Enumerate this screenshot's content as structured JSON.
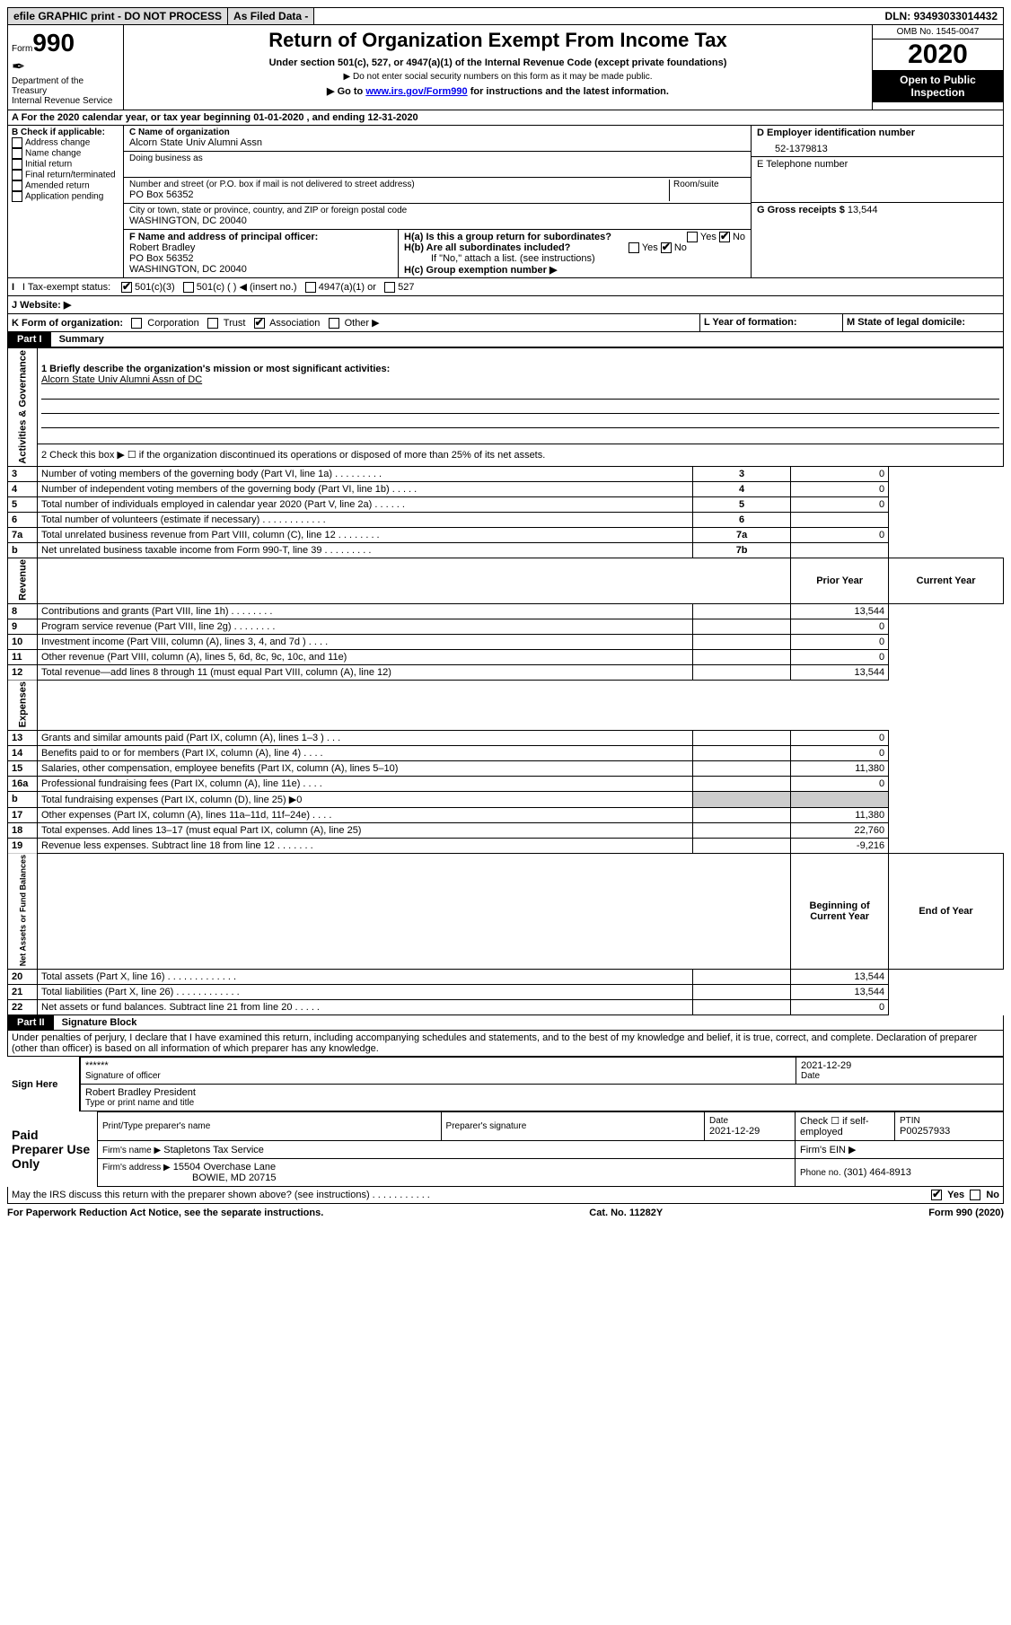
{
  "topbar": {
    "efile": "efile GRAPHIC print - DO NOT PROCESS",
    "asfiled": "As Filed Data -",
    "dln_label": "DLN:",
    "dln": "93493033014432"
  },
  "header": {
    "form": "990",
    "form_prefix": "Form",
    "dept": "Department of the Treasury\nInternal Revenue Service",
    "title": "Return of Organization Exempt From Income Tax",
    "sub1": "Under section 501(c), 527, or 4947(a)(1) of the Internal Revenue Code (except private foundations)",
    "sub2": "▶ Do not enter social security numbers on this form as it may be made public.",
    "sub3_pre": "▶ Go to ",
    "sub3_link": "www.irs.gov/Form990",
    "sub3_post": " for instructions and the latest information.",
    "omb": "OMB No. 1545-0047",
    "year": "2020",
    "inspect": "Open to Public Inspection"
  },
  "line_a": "A  For the 2020 calendar year, or tax year beginning 01-01-2020   , and ending 12-31-2020",
  "box_b": {
    "label": "B Check if applicable:",
    "items": [
      "Address change",
      "Name change",
      "Initial return",
      "Final return/terminated",
      "Amended return",
      "Application pending"
    ]
  },
  "box_c": {
    "c_name_label": "C Name of organization",
    "c_name": "Alcorn State Univ Alumni Assn",
    "dba_label": "Doing business as",
    "addr_label": "Number and street (or P.O. box if mail is not delivered to street address)",
    "room_label": "Room/suite",
    "addr": "PO Box 56352",
    "city_label": "City or town, state or province, country, and ZIP or foreign postal code",
    "city": "WASHINGTON, DC  20040"
  },
  "box_d": {
    "label": "D Employer identification number",
    "val": "52-1379813"
  },
  "box_e": {
    "label": "E Telephone number"
  },
  "box_g": {
    "label": "G Gross receipts $",
    "val": "13,544"
  },
  "box_f": {
    "label": "F  Name and address of principal officer:",
    "l1": "Robert Bradley",
    "l2": "PO Box 56352",
    "l3": "WASHINGTON, DC  20040"
  },
  "box_h": {
    "a": "H(a)  Is this a group return for subordinates?",
    "b": "H(b)  Are all subordinates included?",
    "note": "If \"No,\" attach a list. (see instructions)",
    "c": "H(c)  Group exemption number ▶",
    "yes": "Yes",
    "no": "No"
  },
  "line_i": {
    "label": "I   Tax-exempt status:",
    "o1": "501(c)(3)",
    "o2": "501(c) (  ) ◀ (insert no.)",
    "o3": "4947(a)(1) or",
    "o4": "527"
  },
  "line_j": "J   Website: ▶",
  "line_k": {
    "label": "K Form of organization:",
    "o": [
      "Corporation",
      "Trust",
      "Association",
      "Other ▶"
    ]
  },
  "box_l": "L Year of formation:",
  "box_m": "M State of legal domicile:",
  "part1": {
    "num": "Part I",
    "title": "Summary"
  },
  "summary": {
    "l1": "1 Briefly describe the organization's mission or most significant activities:",
    "mission": "Alcorn State Univ Alumni Assn of DC",
    "l2": "2  Check this box ▶ ☐ if the organization discontinued its operations or disposed of more than 25% of its net assets.",
    "rows": [
      {
        "n": "3",
        "t": "Number of voting members of the governing body (Part VI, line 1a)  .   .   .   .   .   .   .   .   .",
        "c": "3",
        "v": "0"
      },
      {
        "n": "4",
        "t": "Number of independent voting members of the governing body (Part VI, line 1b)   .   .   .   .   .",
        "c": "4",
        "v": "0"
      },
      {
        "n": "5",
        "t": "Total number of individuals employed in calendar year 2020 (Part V, line 2a)  .   .   .   .   .   .",
        "c": "5",
        "v": "0"
      },
      {
        "n": "6",
        "t": "Total number of volunteers (estimate if necessary)   .   .   .   .   .   .   .   .   .   .   .   .",
        "c": "6",
        "v": ""
      },
      {
        "n": "7a",
        "t": "Total unrelated business revenue from Part VIII, column (C), line 12  .   .   .   .   .   .   .   .",
        "c": "7a",
        "v": "0"
      },
      {
        "n": "b",
        "t": "Net unrelated business taxable income from Form 990-T, line 39   .   .   .   .   .   .   .   .   .",
        "c": "7b",
        "v": ""
      }
    ],
    "hdr_prior": "Prior Year",
    "hdr_curr": "Current Year",
    "rev": [
      {
        "n": "8",
        "t": "Contributions and grants (Part VIII, line 1h)   .   .   .   .   .   .   .   .",
        "p": "",
        "c": "13,544"
      },
      {
        "n": "9",
        "t": "Program service revenue (Part VIII, line 2g)   .   .   .   .   .   .   .   .",
        "p": "",
        "c": "0"
      },
      {
        "n": "10",
        "t": "Investment income (Part VIII, column (A), lines 3, 4, and 7d )   .   .   .   .",
        "p": "",
        "c": "0"
      },
      {
        "n": "11",
        "t": "Other revenue (Part VIII, column (A), lines 5, 6d, 8c, 9c, 10c, and 11e)",
        "p": "",
        "c": "0"
      },
      {
        "n": "12",
        "t": "Total revenue—add lines 8 through 11 (must equal Part VIII, column (A), line 12)",
        "p": "",
        "c": "13,544"
      }
    ],
    "exp": [
      {
        "n": "13",
        "t": "Grants and similar amounts paid (Part IX, column (A), lines 1–3 )   .   .   .",
        "p": "",
        "c": "0"
      },
      {
        "n": "14",
        "t": "Benefits paid to or for members (Part IX, column (A), line 4)  .   .   .   .",
        "p": "",
        "c": "0"
      },
      {
        "n": "15",
        "t": "Salaries, other compensation, employee benefits (Part IX, column (A), lines 5–10)",
        "p": "",
        "c": "11,380"
      },
      {
        "n": "16a",
        "t": "Professional fundraising fees (Part IX, column (A), line 11e)   .   .   .   .",
        "p": "",
        "c": "0"
      },
      {
        "n": "b",
        "t": "Total fundraising expenses (Part IX, column (D), line 25) ▶0",
        "p": null,
        "c": null
      },
      {
        "n": "17",
        "t": "Other expenses (Part IX, column (A), lines 11a–11d, 11f–24e)   .   .   .   .",
        "p": "",
        "c": "11,380"
      },
      {
        "n": "18",
        "t": "Total expenses. Add lines 13–17 (must equal Part IX, column (A), line 25)",
        "p": "",
        "c": "22,760"
      },
      {
        "n": "19",
        "t": "Revenue less expenses. Subtract line 18 from line 12  .   .   .   .   .   .   .",
        "p": "",
        "c": "-9,216"
      }
    ],
    "hdr_beg": "Beginning of Current Year",
    "hdr_end": "End of Year",
    "net": [
      {
        "n": "20",
        "t": "Total assets (Part X, line 16)  .   .   .   .   .   .   .   .   .   .   .   .   .",
        "p": "",
        "c": "13,544"
      },
      {
        "n": "21",
        "t": "Total liabilities (Part X, line 26)  .   .   .   .   .   .   .   .   .   .   .   .",
        "p": "",
        "c": "13,544"
      },
      {
        "n": "22",
        "t": "Net assets or fund balances. Subtract line 21 from line 20  .   .   .   .   .",
        "p": "",
        "c": "0"
      }
    ],
    "side_ag": "Activities & Governance",
    "side_rev": "Revenue",
    "side_exp": "Expenses",
    "side_net": "Net Assets or Fund Balances"
  },
  "part2": {
    "num": "Part II",
    "title": "Signature Block",
    "decl": "Under penalties of perjury, I declare that I have examined this return, including accompanying schedules and statements, and to the best of my knowledge and belief, it is true, correct, and complete. Declaration of preparer (other than officer) is based on all information of which preparer has any knowledge."
  },
  "sign": {
    "here": "Sign Here",
    "stars": "******",
    "sig_label": "Signature of officer",
    "date": "2021-12-29",
    "date_label": "Date",
    "name": "Robert Bradley President",
    "name_label": "Type or print name and title"
  },
  "paid": {
    "label": "Paid Preparer Use Only",
    "h": [
      "Print/Type preparer's name",
      "Preparer's signature",
      "Date",
      "",
      "PTIN"
    ],
    "r1_date": "2021-12-29",
    "r1_check": "Check ☐ if self-employed",
    "r1_ptin": "P00257933",
    "firm_name_l": "Firm's name   ▶",
    "firm_name": "Stapletons Tax Service",
    "firm_ein_l": "Firm's EIN ▶",
    "firm_addr_l": "Firm's address ▶",
    "firm_addr1": "15504 Overchase Lane",
    "firm_addr2": "BOWIE, MD  20715",
    "phone_l": "Phone no.",
    "phone": "(301) 464-8913"
  },
  "bottom": {
    "q": "May the IRS discuss this return with the preparer shown above? (see instructions)   .   .   .   .   .   .   .   .   .   .   .",
    "yes": "Yes",
    "no": "No",
    "pra": "For Paperwork Reduction Act Notice, see the separate instructions.",
    "cat": "Cat. No. 11282Y",
    "form": "Form 990 (2020)"
  }
}
